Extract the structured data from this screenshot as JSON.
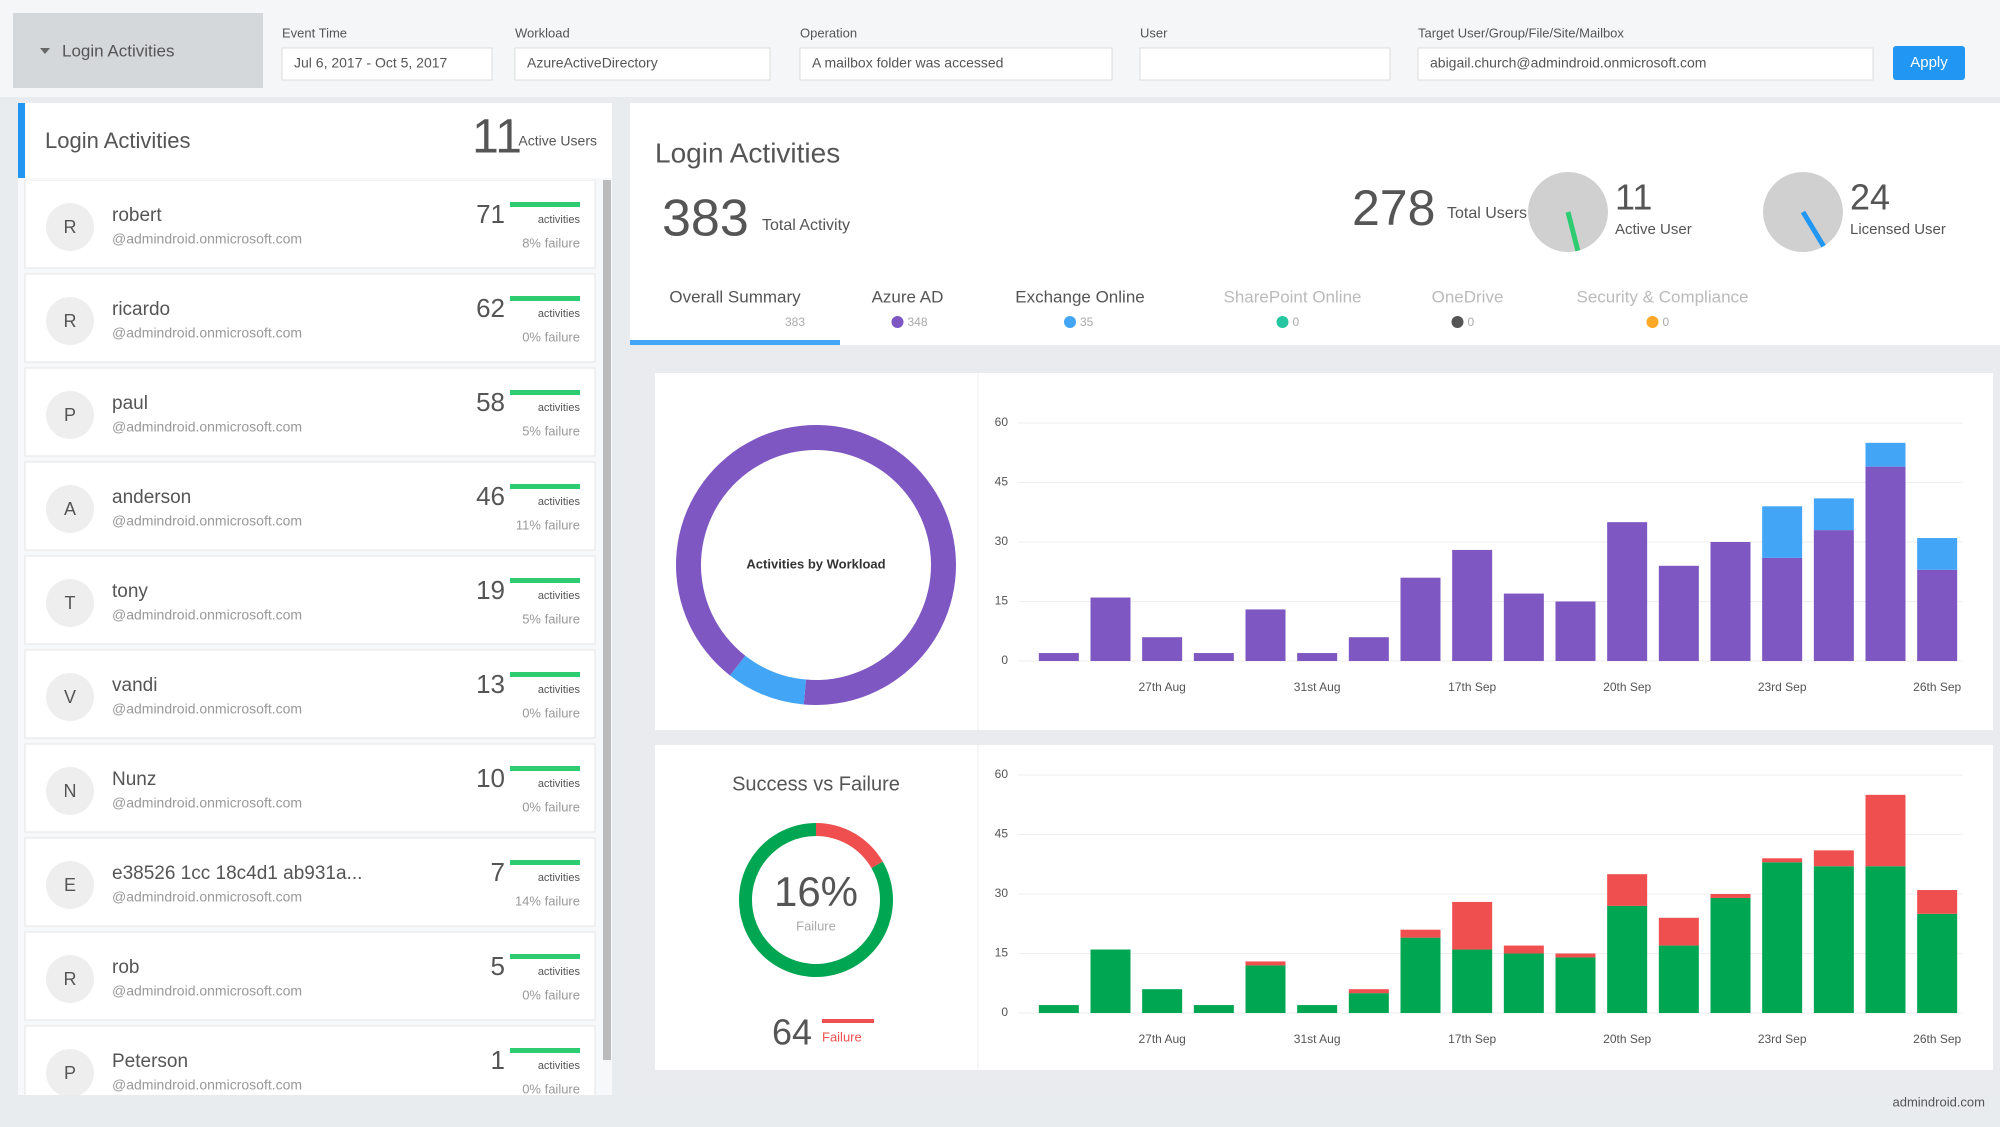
{
  "menu": "Login Activities",
  "filters": [
    {
      "label": "Event Time",
      "value": "Jul 6, 2017 - Oct 5, 2017"
    },
    {
      "label": "Workload",
      "value": "AzureActiveDirectory"
    },
    {
      "label": "Operation",
      "value": "A mailbox folder was accessed"
    },
    {
      "label": "User"
    },
    {
      "label": "Target User/Group/File/Site/Mailbox",
      "value": "abigail.church@admindroid.onmicrosoft.com"
    }
  ],
  "apply": "Apply",
  "sidebar": {
    "title": "Login Activities",
    "active_count": 11,
    "active_label": "Active Users",
    "users": [
      {
        "initial": "R",
        "name": "robert",
        "email": "@admindroid.onmicrosoft.com",
        "activities": 71,
        "activities_label": "activities",
        "failure": "8% failure"
      },
      {
        "initial": "R",
        "name": "ricardo",
        "email": "@admindroid.onmicrosoft.com",
        "activities": 62,
        "activities_label": "activities",
        "failure": "0% failure"
      },
      {
        "initial": "P",
        "name": "paul",
        "email": "@admindroid.onmicrosoft.com",
        "activities": 58,
        "activities_label": "activities",
        "failure": "5% failure"
      },
      {
        "initial": "A",
        "name": "anderson",
        "email": "@admindroid.onmicrosoft.com",
        "activities": 46,
        "activities_label": "activities",
        "failure": "11% failure"
      },
      {
        "initial": "T",
        "name": "tony",
        "email": "@admindroid.onmicrosoft.com",
        "activities": 19,
        "activities_label": "activities",
        "failure": "5% failure"
      },
      {
        "initial": "V",
        "name": "vandi",
        "email": "@admindroid.onmicrosoft.com",
        "activities": 13,
        "activities_label": "activities",
        "failure": "0% failure"
      },
      {
        "initial": "N",
        "name": "Nunz",
        "email": "@admindroid.onmicrosoft.com",
        "activities": 10,
        "activities_label": "activities",
        "failure": "0% failure"
      },
      {
        "initial": "E",
        "name": "e38526 1cc 18c4d1 ab931a...",
        "email": "@admindroid.onmicrosoft.com",
        "activities": 7,
        "activities_label": "activities",
        "failure": "14% failure"
      },
      {
        "initial": "R",
        "name": "rob",
        "email": "@admindroid.onmicrosoft.com",
        "activities": 5,
        "activities_label": "activities",
        "failure": "0% failure"
      },
      {
        "initial": "P",
        "name": "Peterson",
        "email": "@admindroid.onmicrosoft.com",
        "activities": 1,
        "activities_label": "activities",
        "failure": "0% failure"
      }
    ]
  },
  "summary": {
    "title": "Login Activities",
    "total_activity": 383,
    "total_activity_label": "Total Activity",
    "total_users": 278,
    "total_users_label": "Total Users",
    "active_user": 11,
    "active_user_label": "Active User",
    "licensed_user": 24,
    "licensed_user_label": "Licensed User"
  },
  "tabs": [
    {
      "label": "Overall Summary",
      "count": 383
    },
    {
      "label": "Azure AD",
      "count": 348,
      "color": "#7e57c2"
    },
    {
      "label": "Exchange Online",
      "count": 35,
      "color": "#42a5f5"
    },
    {
      "label": "SharePoint Online",
      "count": 0,
      "color": "#26c6a0"
    },
    {
      "label": "OneDrive",
      "count": 0,
      "color": "#555555"
    },
    {
      "label": "Security & Compliance",
      "count": 0,
      "color": "#ffa726"
    }
  ],
  "chart_data": [
    {
      "type": "donut",
      "title": "Activities by Workload",
      "values": [
        348,
        35
      ],
      "colors": [
        "#7e57c2",
        "#42a5f5"
      ]
    },
    {
      "type": "bar",
      "stacked": true,
      "categories": [
        null,
        null,
        "27th Aug",
        null,
        null,
        "31st Aug",
        null,
        null,
        "17th Sep",
        null,
        null,
        "20th Sep",
        null,
        null,
        "23rd Sep",
        null,
        null,
        "26th Sep"
      ],
      "series": [
        {
          "color": "#7e57c2",
          "values": [
            2,
            16,
            6,
            2,
            13,
            2,
            6,
            21,
            28,
            17,
            15,
            35,
            24,
            30,
            26,
            33,
            49,
            23
          ]
        },
        {
          "color": "#42a5f5",
          "values": [
            0,
            0,
            0,
            0,
            0,
            0,
            0,
            0,
            0,
            0,
            0,
            0,
            0,
            0,
            13,
            8,
            6,
            8
          ]
        }
      ],
      "ylim": [
        0,
        60
      ],
      "yticks": [
        0,
        15,
        30,
        45,
        60
      ],
      "grid": true
    },
    {
      "type": "donut",
      "title": "Success vs Failure",
      "values": [
        64,
        319
      ],
      "colors": [
        "#ef4f4f",
        "#00a651"
      ],
      "center_text": "16%",
      "center_label": "Failure",
      "footer_value": 64,
      "footer_label": "Failure"
    },
    {
      "type": "bar",
      "stacked": true,
      "categories": [
        null,
        null,
        "27th Aug",
        null,
        null,
        "31st Aug",
        null,
        null,
        "17th Sep",
        null,
        null,
        "20th Sep",
        null,
        null,
        "23rd Sep",
        null,
        null,
        "26th Sep"
      ],
      "series": [
        {
          "color": "#00a651",
          "values": [
            2,
            16,
            6,
            2,
            12,
            2,
            5,
            19,
            16,
            15,
            14,
            27,
            17,
            29,
            38,
            37,
            37,
            25
          ]
        },
        {
          "color": "#ef4f4f",
          "values": [
            0,
            0,
            0,
            0,
            1,
            0,
            1,
            2,
            12,
            2,
            1,
            8,
            7,
            1,
            1,
            4,
            18,
            6
          ]
        }
      ],
      "ylim": [
        0,
        60
      ],
      "yticks": [
        0,
        15,
        30,
        45,
        60
      ],
      "grid": true
    }
  ],
  "watermark": "admindroid.com"
}
